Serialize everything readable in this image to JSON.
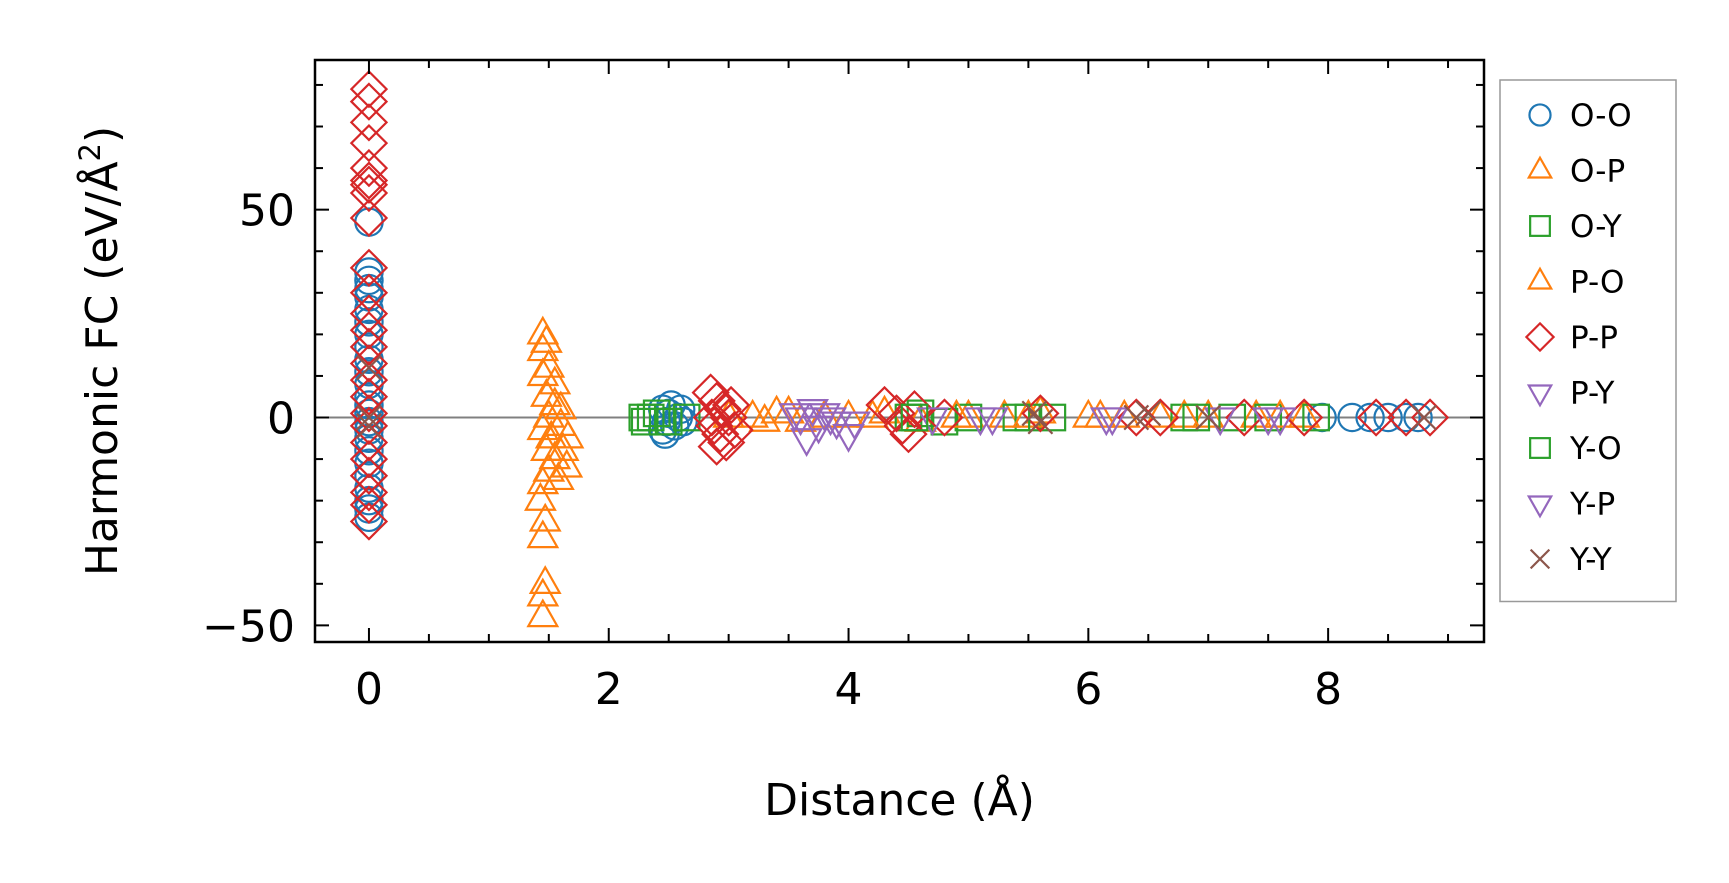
{
  "chart_data": {
    "type": "scatter",
    "xlabel": "Distance (Å)",
    "ylabel_main": "Harmonic FC (eV/Å",
    "ylabel_sup": "2",
    "ylabel_close": ")",
    "xlim": [
      -0.45,
      9.3
    ],
    "ylim": [
      -54,
      86
    ],
    "x_ticks": [
      0,
      2,
      4,
      6,
      8
    ],
    "x_tick_labels": [
      "0",
      "2",
      "4",
      "6",
      "8"
    ],
    "y_ticks": [
      -50,
      0,
      50
    ],
    "y_tick_labels": [
      "−50",
      "0",
      "50"
    ],
    "x_minor_step": 0.5,
    "y_minor_step": 10,
    "ticks_direction": "in",
    "zero_line": true,
    "grid": false,
    "legend_position": "outside-right",
    "series": [
      {
        "name": "O-O",
        "marker": "circle",
        "color": "#1f77b4",
        "points": [
          [
            0,
            -24
          ],
          [
            0,
            -22
          ],
          [
            0,
            -20
          ],
          [
            0,
            -17
          ],
          [
            0,
            -14
          ],
          [
            0,
            -11
          ],
          [
            0,
            -8
          ],
          [
            0,
            -5
          ],
          [
            0,
            -3
          ],
          [
            0,
            -1
          ],
          [
            0,
            1
          ],
          [
            0,
            3
          ],
          [
            0,
            5
          ],
          [
            0,
            8
          ],
          [
            0,
            11
          ],
          [
            0,
            14
          ],
          [
            0,
            17
          ],
          [
            0,
            20
          ],
          [
            0,
            23
          ],
          [
            0,
            26
          ],
          [
            0,
            29
          ],
          [
            0,
            31
          ],
          [
            0,
            33
          ],
          [
            0,
            35
          ],
          [
            0,
            47
          ],
          [
            2.45,
            -3
          ],
          [
            2.48,
            -1
          ],
          [
            2.5,
            1
          ],
          [
            2.52,
            3
          ],
          [
            2.55,
            -2
          ],
          [
            2.58,
            0
          ],
          [
            2.6,
            2
          ],
          [
            2.47,
            -4
          ],
          [
            2.62,
            -1
          ],
          [
            2.45,
            2
          ],
          [
            8.2,
            0
          ],
          [
            8.35,
            0
          ],
          [
            8.5,
            0
          ],
          [
            8.65,
            0
          ],
          [
            8.75,
            0
          ],
          [
            7.95,
            0
          ]
        ]
      },
      {
        "name": "O-P",
        "marker": "triangle-up",
        "color": "#ff7f0e",
        "points": [
          [
            1.45,
            -48
          ],
          [
            1.45,
            -43
          ],
          [
            1.47,
            -40
          ],
          [
            1.45,
            -29
          ],
          [
            1.47,
            -25
          ],
          [
            1.43,
            -20
          ],
          [
            1.45,
            -16
          ],
          [
            1.5,
            -13
          ],
          [
            1.55,
            -10
          ],
          [
            1.48,
            -8
          ],
          [
            1.52,
            -5
          ],
          [
            1.45,
            -3
          ],
          [
            1.6,
            -2
          ],
          [
            1.5,
            0
          ],
          [
            1.65,
            -12
          ],
          [
            1.62,
            -8
          ],
          [
            1.55,
            3
          ],
          [
            1.48,
            5
          ],
          [
            1.55,
            8
          ],
          [
            1.45,
            10
          ],
          [
            1.5,
            12
          ],
          [
            1.45,
            16
          ],
          [
            1.48,
            18
          ],
          [
            1.45,
            20
          ],
          [
            1.58,
            -15
          ],
          [
            1.66,
            -5
          ],
          [
            1.6,
            2
          ],
          [
            3.2,
            0
          ],
          [
            3.4,
            1
          ],
          [
            3.6,
            -1
          ],
          [
            4.0,
            0
          ],
          [
            4.3,
            1
          ],
          [
            4.6,
            -1
          ],
          [
            5.0,
            0
          ],
          [
            5.3,
            0
          ],
          [
            5.6,
            1
          ],
          [
            6.0,
            0
          ],
          [
            6.3,
            0
          ],
          [
            6.6,
            0
          ],
          [
            7.0,
            0
          ],
          [
            7.4,
            0
          ],
          [
            7.8,
            0
          ]
        ]
      },
      {
        "name": "O-Y",
        "marker": "square",
        "color": "#2ca02c",
        "points": [
          [
            2.3,
            -1
          ],
          [
            2.35,
            0
          ],
          [
            2.4,
            1
          ],
          [
            2.5,
            -1
          ],
          [
            2.65,
            0
          ],
          [
            4.5,
            0
          ],
          [
            4.6,
            1
          ],
          [
            4.8,
            -1
          ],
          [
            5.0,
            0
          ],
          [
            5.5,
            0
          ],
          [
            5.7,
            0
          ],
          [
            6.8,
            0
          ],
          [
            7.2,
            0
          ],
          [
            7.5,
            0
          ],
          [
            7.9,
            0
          ]
        ]
      },
      {
        "name": "P-O",
        "marker": "triangle-up",
        "color": "#ff7f0e",
        "points": [
          [
            3.0,
            0
          ],
          [
            3.3,
            -1
          ],
          [
            3.5,
            1
          ],
          [
            3.8,
            0
          ],
          [
            4.2,
            0
          ],
          [
            4.9,
            0
          ],
          [
            5.5,
            0
          ],
          [
            6.1,
            0
          ],
          [
            6.8,
            0
          ],
          [
            7.6,
            0
          ]
        ]
      },
      {
        "name": "P-P",
        "marker": "diamond",
        "color": "#d62728",
        "points": [
          [
            0,
            79
          ],
          [
            0,
            76
          ],
          [
            0,
            71
          ],
          [
            0,
            66
          ],
          [
            0,
            60
          ],
          [
            0,
            57
          ],
          [
            0,
            56
          ],
          [
            0,
            54
          ],
          [
            0,
            48
          ],
          [
            0,
            36
          ],
          [
            0,
            30
          ],
          [
            0,
            25
          ],
          [
            0,
            21
          ],
          [
            0,
            17
          ],
          [
            0,
            13
          ],
          [
            0,
            9
          ],
          [
            0,
            5
          ],
          [
            0,
            1
          ],
          [
            0,
            -2
          ],
          [
            0,
            -6
          ],
          [
            0,
            -10
          ],
          [
            0,
            -14
          ],
          [
            0,
            -18
          ],
          [
            0,
            -21
          ],
          [
            0,
            -25
          ],
          [
            2.85,
            6
          ],
          [
            2.9,
            4
          ],
          [
            2.95,
            2
          ],
          [
            3.0,
            0
          ],
          [
            2.88,
            -2
          ],
          [
            2.93,
            -4
          ],
          [
            2.98,
            -6
          ],
          [
            2.9,
            -7
          ],
          [
            3.02,
            3
          ],
          [
            3.05,
            -3
          ],
          [
            2.86,
            0
          ],
          [
            4.3,
            3
          ],
          [
            4.4,
            1
          ],
          [
            4.45,
            -2
          ],
          [
            4.5,
            -4
          ],
          [
            4.55,
            2
          ],
          [
            4.8,
            0
          ],
          [
            5.6,
            1
          ],
          [
            6.4,
            0
          ],
          [
            6.6,
            0
          ],
          [
            7.3,
            0
          ],
          [
            7.8,
            0
          ],
          [
            8.4,
            0
          ],
          [
            8.65,
            0
          ],
          [
            8.85,
            0
          ]
        ]
      },
      {
        "name": "P-Y",
        "marker": "triangle-down",
        "color": "#9467bd",
        "points": [
          [
            3.6,
            0
          ],
          [
            3.7,
            2
          ],
          [
            3.75,
            -2
          ],
          [
            3.8,
            1
          ],
          [
            3.9,
            -1
          ],
          [
            4.0,
            -4
          ],
          [
            3.65,
            -5
          ],
          [
            4.7,
            0
          ],
          [
            5.1,
            0
          ],
          [
            6.15,
            0
          ],
          [
            7.1,
            0
          ],
          [
            7.5,
            0
          ]
        ]
      },
      {
        "name": "Y-O",
        "marker": "square",
        "color": "#2ca02c",
        "points": [
          [
            2.28,
            0
          ],
          [
            2.45,
            -1
          ],
          [
            4.55,
            0
          ],
          [
            5.4,
            0
          ],
          [
            6.9,
            0
          ]
        ]
      },
      {
        "name": "Y-P",
        "marker": "triangle-down",
        "color": "#9467bd",
        "points": [
          [
            3.55,
            1
          ],
          [
            3.85,
            0
          ],
          [
            4.05,
            -1
          ],
          [
            5.2,
            0
          ],
          [
            6.2,
            0
          ],
          [
            7.6,
            0
          ]
        ]
      },
      {
        "name": "Y-Y",
        "marker": "x",
        "color": "#8c564b",
        "points": [
          [
            0,
            0
          ],
          [
            0,
            12
          ],
          [
            0,
            -2
          ],
          [
            5.55,
            1
          ],
          [
            5.6,
            -1
          ],
          [
            6.4,
            0
          ],
          [
            6.5,
            1
          ],
          [
            7.0,
            0
          ],
          [
            8.8,
            0
          ]
        ]
      }
    ]
  }
}
